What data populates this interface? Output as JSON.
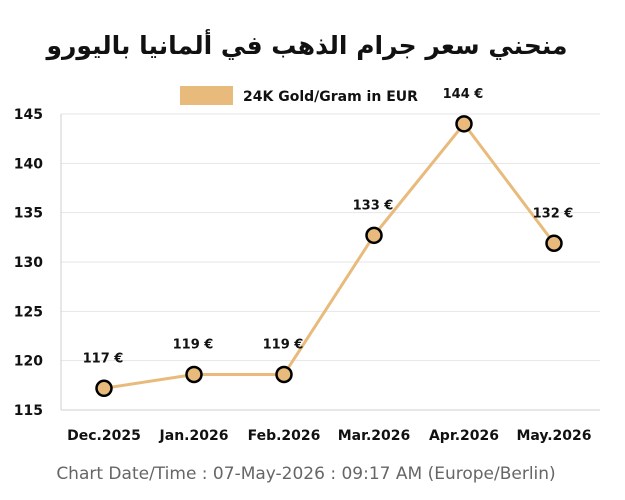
{
  "chart_data": {
    "type": "line",
    "title": "منحني سعر جرام الذهب في ألمانيا باليورو",
    "categories": [
      "Dec.2025",
      "Jan.2026",
      "Feb.2026",
      "Mar.2026",
      "Apr.2026",
      "May.2026"
    ],
    "series": [
      {
        "name": "24K Gold/Gram in EUR",
        "values": [
          117.2,
          118.6,
          118.6,
          132.7,
          144.0,
          131.9
        ],
        "labels": [
          "117 €",
          "119 €",
          "119 €",
          "133 €",
          "144 €",
          "132 €"
        ],
        "color": "#E8BB7D"
      }
    ],
    "ylim": [
      115,
      145
    ],
    "yticks": [
      115,
      120,
      125,
      130,
      135,
      140,
      145
    ],
    "grid": true,
    "legend": "top-center",
    "marker_fill": "#E8BB7D",
    "marker_edge": "#000000"
  },
  "footer": "Chart Date/Time : 07-May-2026 : 09:17 AM (Europe/Berlin)"
}
